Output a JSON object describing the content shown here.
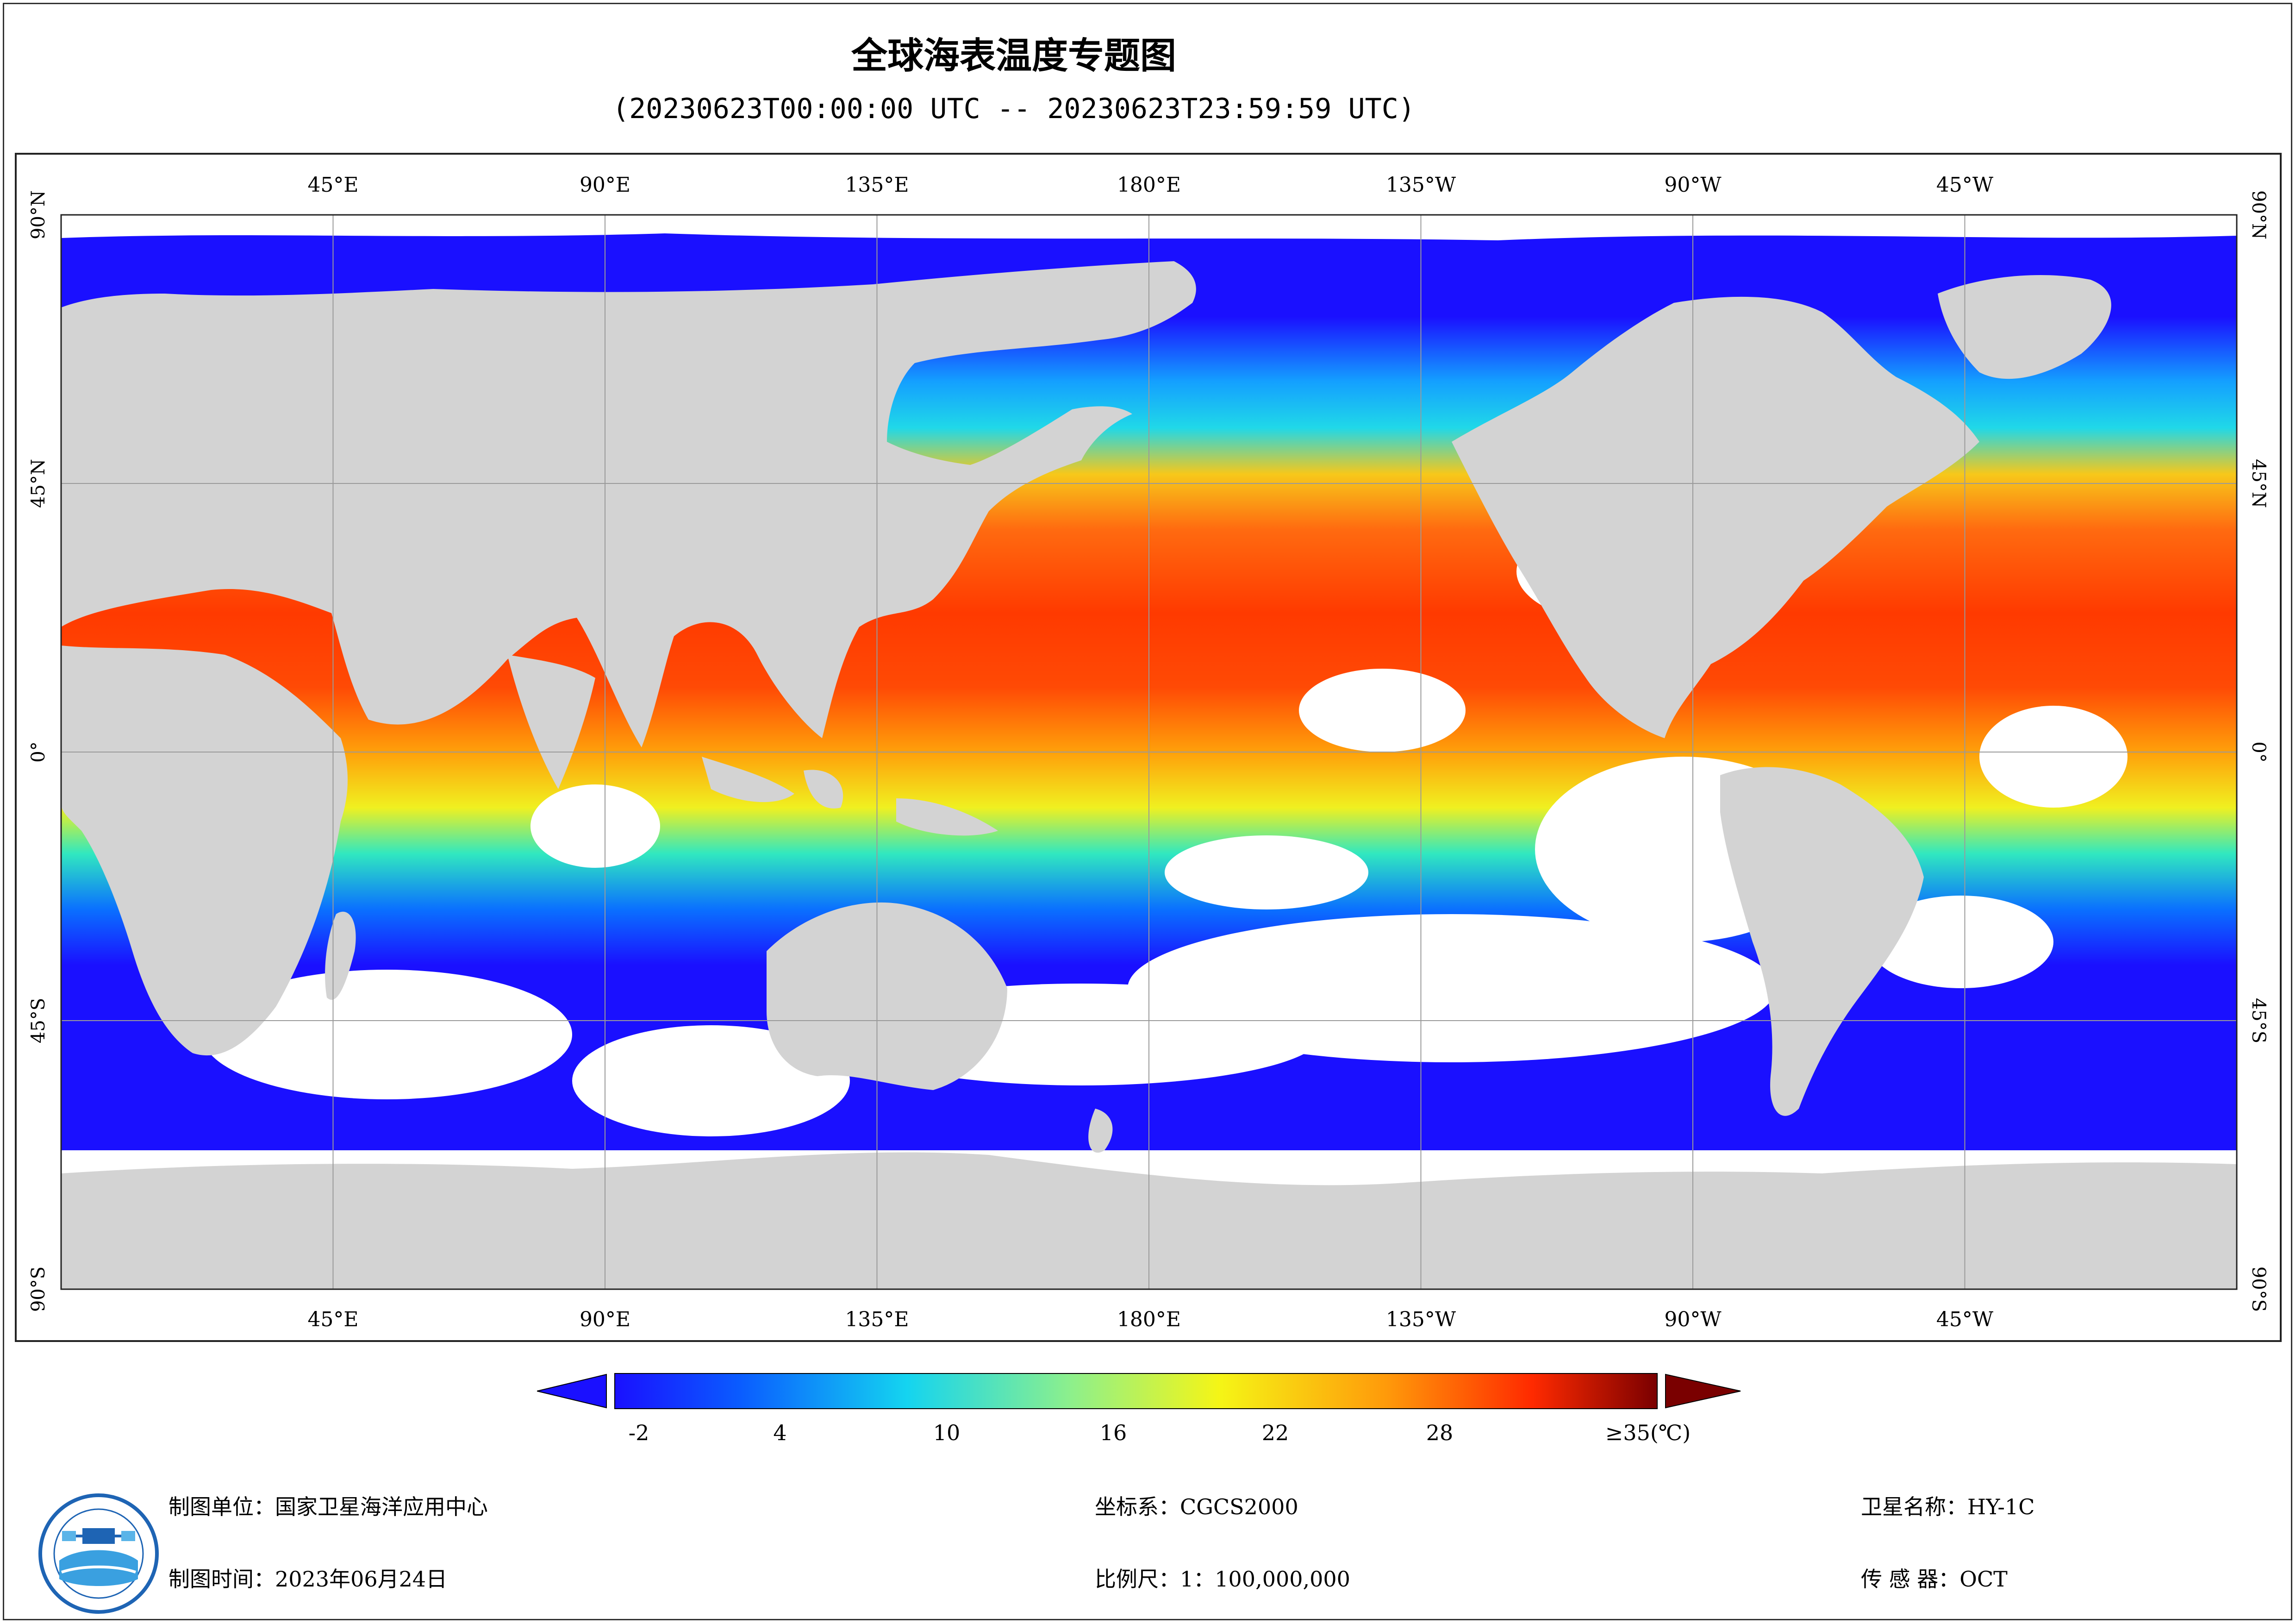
{
  "title": "全球海表温度专题图",
  "subtitle": "(20230623T00:00:00 UTC -- 20230623T23:59:59 UTC)",
  "map": {
    "lon_labels_top": [
      "45°E",
      "90°E",
      "135°E",
      "180°E",
      "135°W",
      "90°W",
      "45°W"
    ],
    "lon_labels_bottom": [
      "45°E",
      "90°E",
      "135°E",
      "180°E",
      "135°W",
      "90°W",
      "45°W"
    ],
    "lat_labels_left": [
      "90°N",
      "45°N",
      "0°",
      "45°S",
      "90°S"
    ],
    "lat_labels_right": [
      "90°N",
      "45°N",
      "0°",
      "45°S",
      "90°S"
    ],
    "colors": {
      "land": "#d3d3d3",
      "cloud": "#ffffff",
      "grid": "#9a9a9a"
    }
  },
  "colorbar": {
    "tick_labels": [
      "-2",
      "4",
      "10",
      "16",
      "22",
      "28",
      "≥35(℃)"
    ],
    "colors": [
      "#1a10ff",
      "#0a6bff",
      "#14d4f0",
      "#8ff08a",
      "#f5f516",
      "#ff9a0a",
      "#ff2a00",
      "#7a0000"
    ]
  },
  "footer": {
    "unit": "制图单位：国家卫星海洋应用中心",
    "time": "制图时间：2023年06月24日",
    "crs": "坐标系：CGCS2000",
    "scale": "比例尺：1：100,000,000",
    "satellite": "卫星名称：HY-1C",
    "sensor": "传 感 器：OCT"
  }
}
